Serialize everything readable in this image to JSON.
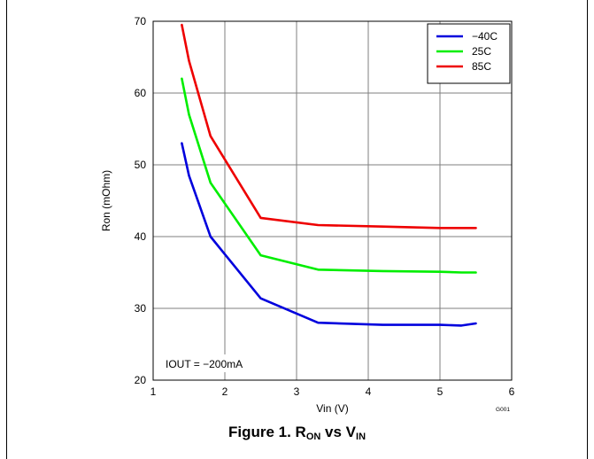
{
  "chart_data": {
    "type": "line",
    "title": "",
    "xlabel": "Vin (V)",
    "ylabel": "Ron (mOhm)",
    "xlim": [
      1,
      6
    ],
    "ylim": [
      20,
      70
    ],
    "xticks": [
      1,
      2,
      3,
      4,
      5,
      6
    ],
    "yticks": [
      20,
      30,
      40,
      50,
      60,
      70
    ],
    "grid": true,
    "legend_position": "top-right",
    "annotation": "IOUT = −200mA",
    "figure_code": "G001",
    "series": [
      {
        "name": "−40C",
        "color": "#0000dd",
        "x": [
          1.4,
          1.5,
          1.8,
          2.5,
          3.3,
          4.2,
          5.0,
          5.3,
          5.5
        ],
        "y": [
          53,
          48.5,
          40,
          31.4,
          28,
          27.7,
          27.7,
          27.6,
          27.9
        ]
      },
      {
        "name": "25C",
        "color": "#00ee00",
        "x": [
          1.4,
          1.5,
          1.8,
          2.5,
          3.3,
          4.2,
          5.0,
          5.3,
          5.5
        ],
        "y": [
          62,
          57,
          47.5,
          37.4,
          35.4,
          35.2,
          35.1,
          35.0,
          35.0
        ]
      },
      {
        "name": "85C",
        "color": "#ee0000",
        "x": [
          1.4,
          1.5,
          1.8,
          2.5,
          3.3,
          4.2,
          5.0,
          5.3,
          5.5
        ],
        "y": [
          69.5,
          64.5,
          54,
          42.6,
          41.6,
          41.4,
          41.2,
          41.2,
          41.2
        ]
      }
    ]
  },
  "caption": {
    "prefix": "Figure 1. R",
    "sub1": "ON",
    "middle": " vs V",
    "sub2": "IN"
  }
}
